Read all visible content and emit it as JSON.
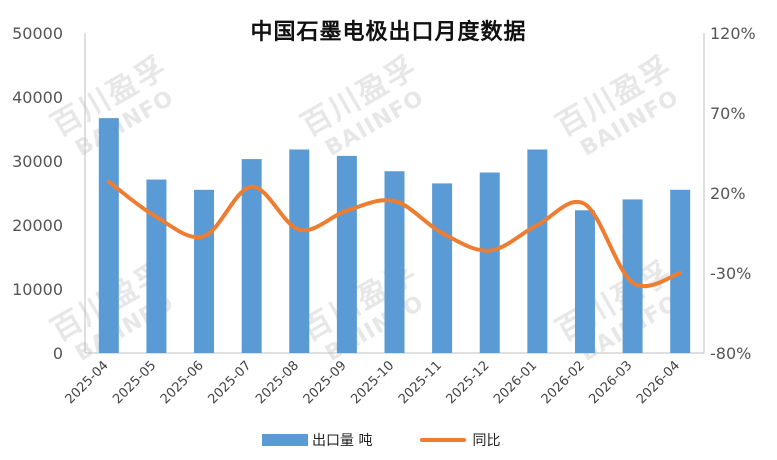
{
  "watermark": {
    "cn": "百川盈孚",
    "en": "BAIINFO"
  },
  "chart_data": {
    "type": "bar",
    "title": "中国石墨电极出口月度数据",
    "categories": [
      "2025-04",
      "2025-05",
      "2025-06",
      "2025-07",
      "2025-08",
      "2025-09",
      "2025-10",
      "2025-11",
      "2025-12",
      "2026-01",
      "2026-02",
      "2026-03",
      "2026-04"
    ],
    "series": [
      {
        "name": "出口量 吨",
        "type": "bar",
        "axis": "left",
        "color": "#5b9bd5",
        "values": [
          36700,
          27100,
          25500,
          30300,
          31800,
          30800,
          28400,
          26500,
          28200,
          31800,
          22300,
          24000,
          25500
        ]
      },
      {
        "name": "同比",
        "type": "line",
        "axis": "right",
        "color": "#ed7d31",
        "unit": "%",
        "values": [
          27,
          5,
          -7,
          24,
          -3,
          9,
          15,
          -5,
          -16,
          0,
          13,
          -36,
          -30
        ]
      }
    ],
    "y_left": {
      "min": 0,
      "max": 50000,
      "ticks": [
        "0",
        "10000",
        "20000",
        "30000",
        "40000",
        "50000"
      ]
    },
    "y_right": {
      "min": -80,
      "max": 120,
      "ticks": [
        "-80%",
        "-30%",
        "20%",
        "70%",
        "120%"
      ]
    },
    "grid": false,
    "legend_position": "bottom"
  }
}
